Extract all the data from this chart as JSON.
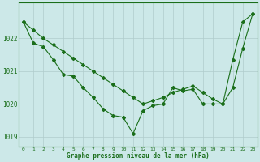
{
  "title": "Graphe pression niveau de la mer (hPa)",
  "background_color": "#cce8e8",
  "plot_bg_color": "#cce8e8",
  "line_color": "#1a6e1a",
  "grid_color": "#b0cccc",
  "text_color": "#1a6e1a",
  "hours": [
    0,
    1,
    2,
    3,
    4,
    5,
    6,
    7,
    8,
    9,
    10,
    11,
    12,
    13,
    14,
    15,
    16,
    17,
    18,
    19,
    20,
    21,
    22,
    23
  ],
  "series1": [
    1022.5,
    1021.85,
    1021.75,
    1021.35,
    1020.9,
    1020.85,
    1020.5,
    1020.2,
    1019.85,
    1019.65,
    1019.6,
    1019.1,
    1019.8,
    1019.95,
    1020.0,
    1020.5,
    1020.4,
    1020.45,
    1020.0,
    1020.0,
    1020.0,
    1021.35,
    1022.5,
    1022.75
  ],
  "series2": [
    1022.5,
    1022.25,
    1022.0,
    1021.8,
    1021.6,
    1021.4,
    1021.2,
    1021.0,
    1020.8,
    1020.6,
    1020.4,
    1020.2,
    1020.0,
    1020.1,
    1020.2,
    1020.35,
    1020.45,
    1020.55,
    1020.35,
    1020.15,
    1020.0,
    1020.5,
    1021.7,
    1022.75
  ],
  "ylim": [
    1018.7,
    1023.1
  ],
  "yticks": [
    1019,
    1020,
    1021,
    1022
  ],
  "xlim": [
    -0.5,
    23.5
  ],
  "figwidth": 3.2,
  "figheight": 2.0,
  "dpi": 100
}
